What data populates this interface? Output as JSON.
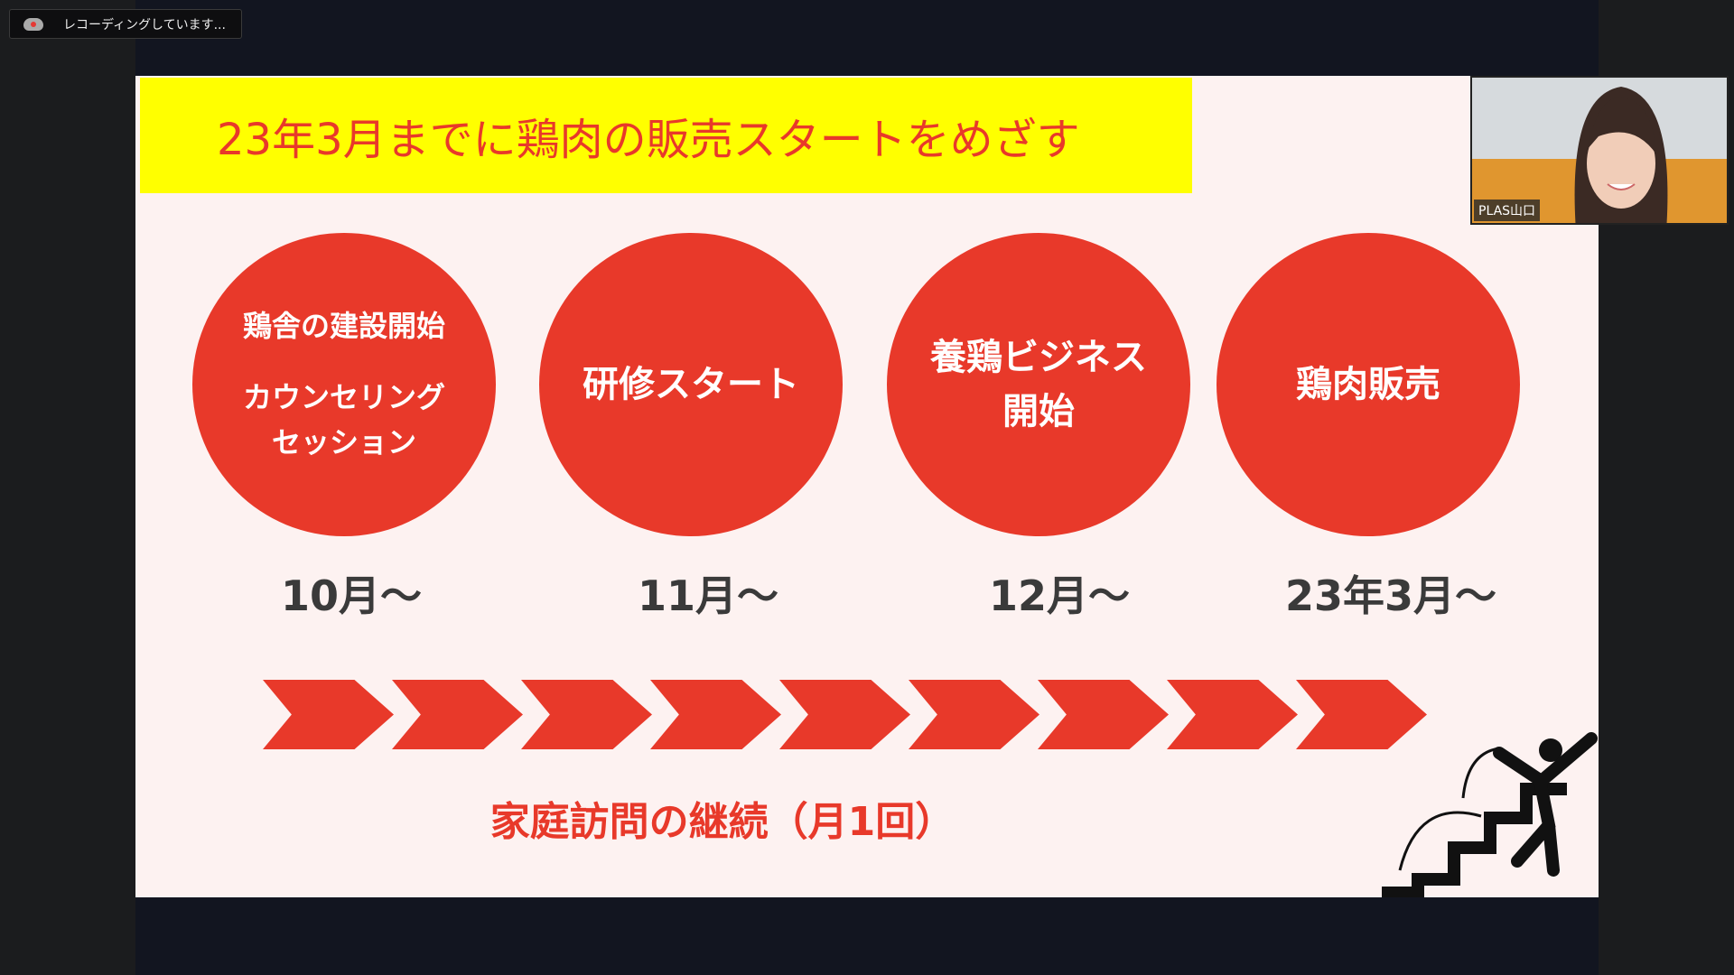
{
  "recording": {
    "label": "レコーディングしています...",
    "icon": "cloud-record-icon"
  },
  "slide": {
    "title": "23年3月までに鶏肉の販売スタートをめざす",
    "steps": [
      {
        "lines": [
          "鶏舎の建設開始",
          "",
          "カウンセリング",
          "セッション"
        ],
        "month": "10月〜"
      },
      {
        "lines": [
          "研修スタート"
        ],
        "month": "11月〜"
      },
      {
        "lines": [
          "養鶏ビジネス",
          "開始"
        ],
        "month": "12月〜"
      },
      {
        "lines": [
          "鶏肉販売"
        ],
        "month": "23年3月〜"
      }
    ],
    "footer": "家庭訪問の継続（月1回）",
    "colors": {
      "accent": "#e8392a",
      "banner": "#ffff00"
    }
  },
  "video": {
    "participant_name": "PLAS山口"
  }
}
